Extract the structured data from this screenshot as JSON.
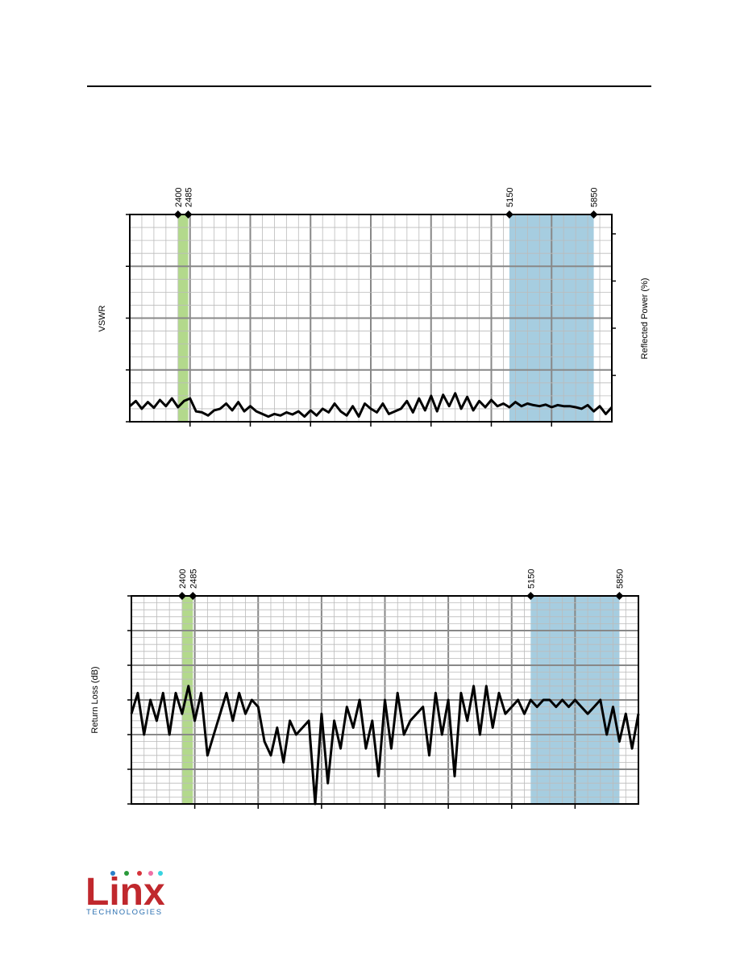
{
  "chart_data": [
    {
      "type": "line",
      "ylabel": "VSWR",
      "y2label": "Reflected Power (%)",
      "xlim": [
        2000,
        6000
      ],
      "ylim": [
        1,
        5
      ],
      "grid": true,
      "markers": [
        2400,
        2485,
        5150,
        5850
      ],
      "bands": [
        {
          "range": [
            2400,
            2485
          ],
          "color": "#b3d98c"
        },
        {
          "range": [
            5150,
            5850
          ],
          "color": "#a6cde0"
        }
      ],
      "x": [
        2000,
        2050,
        2100,
        2150,
        2200,
        2250,
        2300,
        2350,
        2400,
        2450,
        2500,
        2550,
        2600,
        2650,
        2700,
        2750,
        2800,
        2850,
        2900,
        2950,
        3000,
        3050,
        3100,
        3150,
        3200,
        3250,
        3300,
        3350,
        3400,
        3450,
        3500,
        3550,
        3600,
        3650,
        3700,
        3750,
        3800,
        3850,
        3900,
        3950,
        4000,
        4050,
        4100,
        4150,
        4200,
        4250,
        4300,
        4350,
        4400,
        4450,
        4500,
        4550,
        4600,
        4650,
        4700,
        4750,
        4800,
        4850,
        4900,
        4950,
        5000,
        5050,
        5100,
        5150,
        5200,
        5250,
        5300,
        5350,
        5400,
        5450,
        5500,
        5550,
        5600,
        5650,
        5700,
        5750,
        5800,
        5850,
        5900,
        5950,
        6000
      ],
      "series": [
        {
          "color": "#000000",
          "values": [
            1.3,
            1.4,
            1.25,
            1.38,
            1.27,
            1.42,
            1.3,
            1.45,
            1.28,
            1.4,
            1.45,
            1.2,
            1.18,
            1.12,
            1.22,
            1.25,
            1.35,
            1.22,
            1.38,
            1.2,
            1.3,
            1.2,
            1.15,
            1.1,
            1.15,
            1.12,
            1.18,
            1.14,
            1.2,
            1.1,
            1.22,
            1.12,
            1.25,
            1.18,
            1.35,
            1.2,
            1.12,
            1.3,
            1.1,
            1.35,
            1.25,
            1.18,
            1.35,
            1.15,
            1.2,
            1.25,
            1.4,
            1.18,
            1.45,
            1.22,
            1.5,
            1.2,
            1.52,
            1.3,
            1.55,
            1.25,
            1.48,
            1.22,
            1.4,
            1.28,
            1.42,
            1.3,
            1.35,
            1.28,
            1.38,
            1.3,
            1.35,
            1.32,
            1.3,
            1.33,
            1.28,
            1.32,
            1.3,
            1.3,
            1.28,
            1.25,
            1.32,
            1.2,
            1.3,
            1.15,
            1.28
          ]
        }
      ]
    },
    {
      "type": "line",
      "ylabel": "Return Loss (dB)",
      "xlim": [
        2000,
        6000
      ],
      "ylim": [
        -30,
        0
      ],
      "grid": true,
      "markers": [
        2400,
        2485,
        5150,
        5850
      ],
      "bands": [
        {
          "range": [
            2400,
            2485
          ],
          "color": "#b3d98c"
        },
        {
          "range": [
            5150,
            5850
          ],
          "color": "#a6cde0"
        }
      ],
      "x": [
        2000,
        2050,
        2100,
        2150,
        2200,
        2250,
        2300,
        2350,
        2400,
        2450,
        2500,
        2550,
        2600,
        2650,
        2700,
        2750,
        2800,
        2850,
        2900,
        2950,
        3000,
        3050,
        3100,
        3150,
        3200,
        3250,
        3300,
        3350,
        3400,
        3450,
        3500,
        3550,
        3600,
        3650,
        3700,
        3750,
        3800,
        3850,
        3900,
        3950,
        4000,
        4050,
        4100,
        4150,
        4200,
        4250,
        4300,
        4350,
        4400,
        4450,
        4500,
        4550,
        4600,
        4650,
        4700,
        4750,
        4800,
        4850,
        4900,
        4950,
        5000,
        5050,
        5100,
        5150,
        5200,
        5250,
        5300,
        5350,
        5400,
        5450,
        5500,
        5550,
        5600,
        5650,
        5700,
        5750,
        5800,
        5850,
        5900,
        5950,
        6000
      ],
      "series": [
        {
          "color": "#000000",
          "values": [
            -17,
            -14,
            -20,
            -15,
            -18,
            -14,
            -20,
            -14,
            -17,
            -13,
            -18,
            -14,
            -23,
            -20,
            -17,
            -14,
            -18,
            -14,
            -17,
            -15,
            -16,
            -21,
            -23,
            -19,
            -24,
            -18,
            -20,
            -19,
            -18,
            -30,
            -17,
            -27,
            -18,
            -22,
            -16,
            -19,
            -15,
            -22,
            -18,
            -26,
            -15,
            -22,
            -14,
            -20,
            -18,
            -17,
            -16,
            -23,
            -14,
            -20,
            -15,
            -26,
            -14,
            -18,
            -13,
            -20,
            -13,
            -19,
            -14,
            -17,
            -16,
            -15,
            -17,
            -15,
            -16,
            -15,
            -15,
            -16,
            -15,
            -16,
            -15,
            -16,
            -17,
            -16,
            -15,
            -20,
            -16,
            -21,
            -17,
            -22,
            -17
          ]
        }
      ]
    }
  ],
  "logo": {
    "name": "Linx",
    "tagline": "TECHNOLOGIES"
  }
}
